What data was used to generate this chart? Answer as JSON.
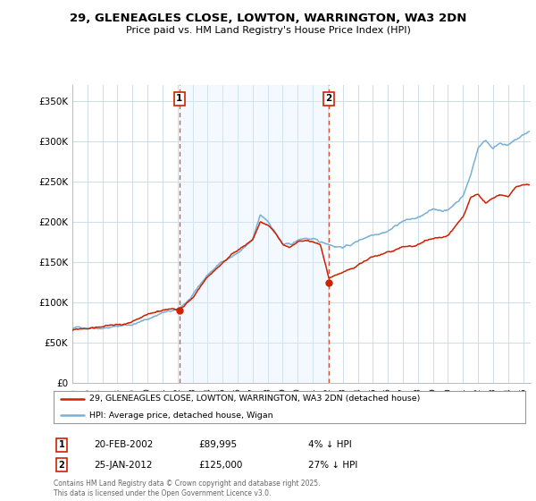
{
  "title": "29, GLENEAGLES CLOSE, LOWTON, WARRINGTON, WA3 2DN",
  "subtitle": "Price paid vs. HM Land Registry's House Price Index (HPI)",
  "yticks": [
    0,
    50000,
    100000,
    150000,
    200000,
    250000,
    300000,
    350000
  ],
  "ytick_labels": [
    "£0",
    "£50K",
    "£100K",
    "£150K",
    "£200K",
    "£250K",
    "£300K",
    "£350K"
  ],
  "xlim_start": 1995.0,
  "xlim_end": 2025.5,
  "ylim": [
    0,
    370000
  ],
  "hpi_color": "#7ab0d4",
  "price_color": "#cc2200",
  "vline1_x": 2002.13,
  "vline2_x": 2012.07,
  "sale1_label": "1",
  "sale2_label": "2",
  "sale1_price_val": 89995,
  "sale2_price_val": 125000,
  "sale1_date": "20-FEB-2002",
  "sale1_price": "£89,995",
  "sale1_hpi": "4% ↓ HPI",
  "sale2_date": "25-JAN-2012",
  "sale2_price": "£125,000",
  "sale2_hpi": "27% ↓ HPI",
  "legend1": "29, GLENEAGLES CLOSE, LOWTON, WARRINGTON, WA3 2DN (detached house)",
  "legend2": "HPI: Average price, detached house, Wigan",
  "footer": "Contains HM Land Registry data © Crown copyright and database right 2025.\nThis data is licensed under the Open Government Licence v3.0.",
  "background_color": "#ffffff",
  "grid_color": "#ccdde8",
  "shade_color": "#ddeeff",
  "hpi_anchors": [
    [
      1995.0,
      68000
    ],
    [
      1996.0,
      70000
    ],
    [
      1997.0,
      72000
    ],
    [
      1998.0,
      74000
    ],
    [
      1999.0,
      77000
    ],
    [
      2000.0,
      83000
    ],
    [
      2001.0,
      92000
    ],
    [
      2002.0,
      93500
    ],
    [
      2003.0,
      110000
    ],
    [
      2004.0,
      135000
    ],
    [
      2005.0,
      152000
    ],
    [
      2006.0,
      163000
    ],
    [
      2007.0,
      178000
    ],
    [
      2007.5,
      207000
    ],
    [
      2008.0,
      200000
    ],
    [
      2008.5,
      187000
    ],
    [
      2009.0,
      172000
    ],
    [
      2009.5,
      170000
    ],
    [
      2010.0,
      175000
    ],
    [
      2010.5,
      178000
    ],
    [
      2011.0,
      176000
    ],
    [
      2011.5,
      171000
    ],
    [
      2012.0,
      170000
    ],
    [
      2012.5,
      168000
    ],
    [
      2013.0,
      168000
    ],
    [
      2013.5,
      170000
    ],
    [
      2014.0,
      175000
    ],
    [
      2014.5,
      180000
    ],
    [
      2015.0,
      185000
    ],
    [
      2016.0,
      192000
    ],
    [
      2016.5,
      198000
    ],
    [
      2017.0,
      205000
    ],
    [
      2018.0,
      208000
    ],
    [
      2018.5,
      212000
    ],
    [
      2019.0,
      216000
    ],
    [
      2020.0,
      216000
    ],
    [
      2021.0,
      235000
    ],
    [
      2021.5,
      260000
    ],
    [
      2022.0,
      295000
    ],
    [
      2022.5,
      305000
    ],
    [
      2023.0,
      295000
    ],
    [
      2023.5,
      303000
    ],
    [
      2024.0,
      300000
    ],
    [
      2024.5,
      305000
    ],
    [
      2025.4,
      315000
    ]
  ],
  "price_anchors": [
    [
      1995.0,
      65500
    ],
    [
      1996.0,
      67500
    ],
    [
      1997.0,
      70000
    ],
    [
      1998.0,
      72000
    ],
    [
      1999.0,
      74000
    ],
    [
      2000.0,
      80000
    ],
    [
      2001.0,
      87000
    ],
    [
      2002.13,
      89995
    ],
    [
      2003.0,
      105000
    ],
    [
      2004.0,
      130000
    ],
    [
      2005.0,
      148000
    ],
    [
      2006.0,
      160000
    ],
    [
      2007.0,
      175000
    ],
    [
      2007.5,
      197000
    ],
    [
      2008.0,
      192000
    ],
    [
      2008.5,
      182000
    ],
    [
      2009.0,
      168000
    ],
    [
      2009.5,
      164000
    ],
    [
      2010.0,
      170000
    ],
    [
      2010.5,
      172000
    ],
    [
      2011.0,
      170000
    ],
    [
      2011.5,
      168000
    ],
    [
      2012.07,
      125000
    ],
    [
      2012.5,
      130000
    ],
    [
      2013.0,
      133000
    ],
    [
      2013.5,
      136000
    ],
    [
      2014.0,
      140000
    ],
    [
      2014.5,
      145000
    ],
    [
      2015.0,
      150000
    ],
    [
      2016.0,
      155000
    ],
    [
      2016.5,
      158000
    ],
    [
      2017.0,
      163000
    ],
    [
      2018.0,
      165000
    ],
    [
      2018.5,
      168000
    ],
    [
      2019.0,
      170000
    ],
    [
      2020.0,
      172000
    ],
    [
      2021.0,
      195000
    ],
    [
      2021.5,
      220000
    ],
    [
      2022.0,
      225000
    ],
    [
      2022.5,
      215000
    ],
    [
      2023.0,
      218000
    ],
    [
      2023.5,
      222000
    ],
    [
      2024.0,
      220000
    ],
    [
      2024.5,
      230000
    ],
    [
      2025.4,
      232000
    ]
  ]
}
